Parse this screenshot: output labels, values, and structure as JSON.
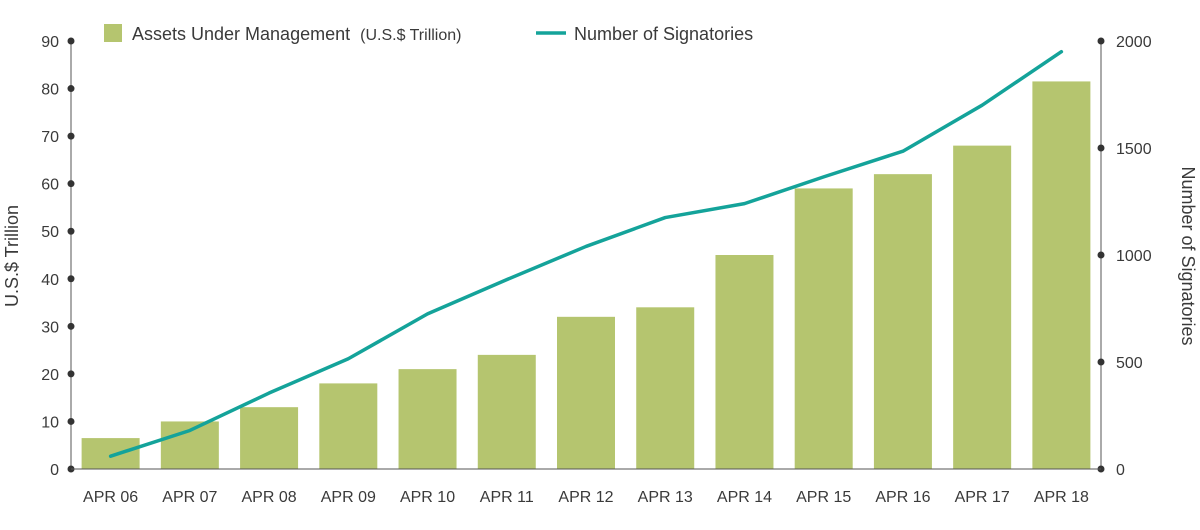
{
  "chart_data": {
    "type": "bar",
    "categories": [
      "APR 06",
      "APR 07",
      "APR 08",
      "APR 09",
      "APR 10",
      "APR 11",
      "APR 12",
      "APR 13",
      "APR 14",
      "APR 15",
      "APR 16",
      "APR 17",
      "APR 18"
    ],
    "series": [
      {
        "name": "Assets Under Management",
        "name_unit": "(U.S.$ Trillion)",
        "type": "bar",
        "axis": "left",
        "color": "#b5c56f",
        "values": [
          6.5,
          10,
          13,
          18,
          21,
          24,
          32,
          34,
          45,
          59,
          62,
          68,
          81.5
        ]
      },
      {
        "name": "Number of Signatories",
        "type": "line",
        "axis": "right",
        "color": "#14a39a",
        "values": [
          60,
          180,
          355,
          515,
          725,
          885,
          1040,
          1175,
          1240,
          1365,
          1485,
          1700,
          1950
        ]
      }
    ],
    "ylabel": "U.S.$ Trillion",
    "ylim": [
      0,
      90
    ],
    "yticks": [
      0,
      10,
      20,
      30,
      40,
      50,
      60,
      70,
      80,
      90
    ],
    "y2label": "Number of Signatories",
    "y2lim": [
      0,
      2000
    ],
    "y2ticks": [
      0,
      500,
      1000,
      1500,
      2000
    ],
    "grid": false,
    "legend_position": "top"
  }
}
